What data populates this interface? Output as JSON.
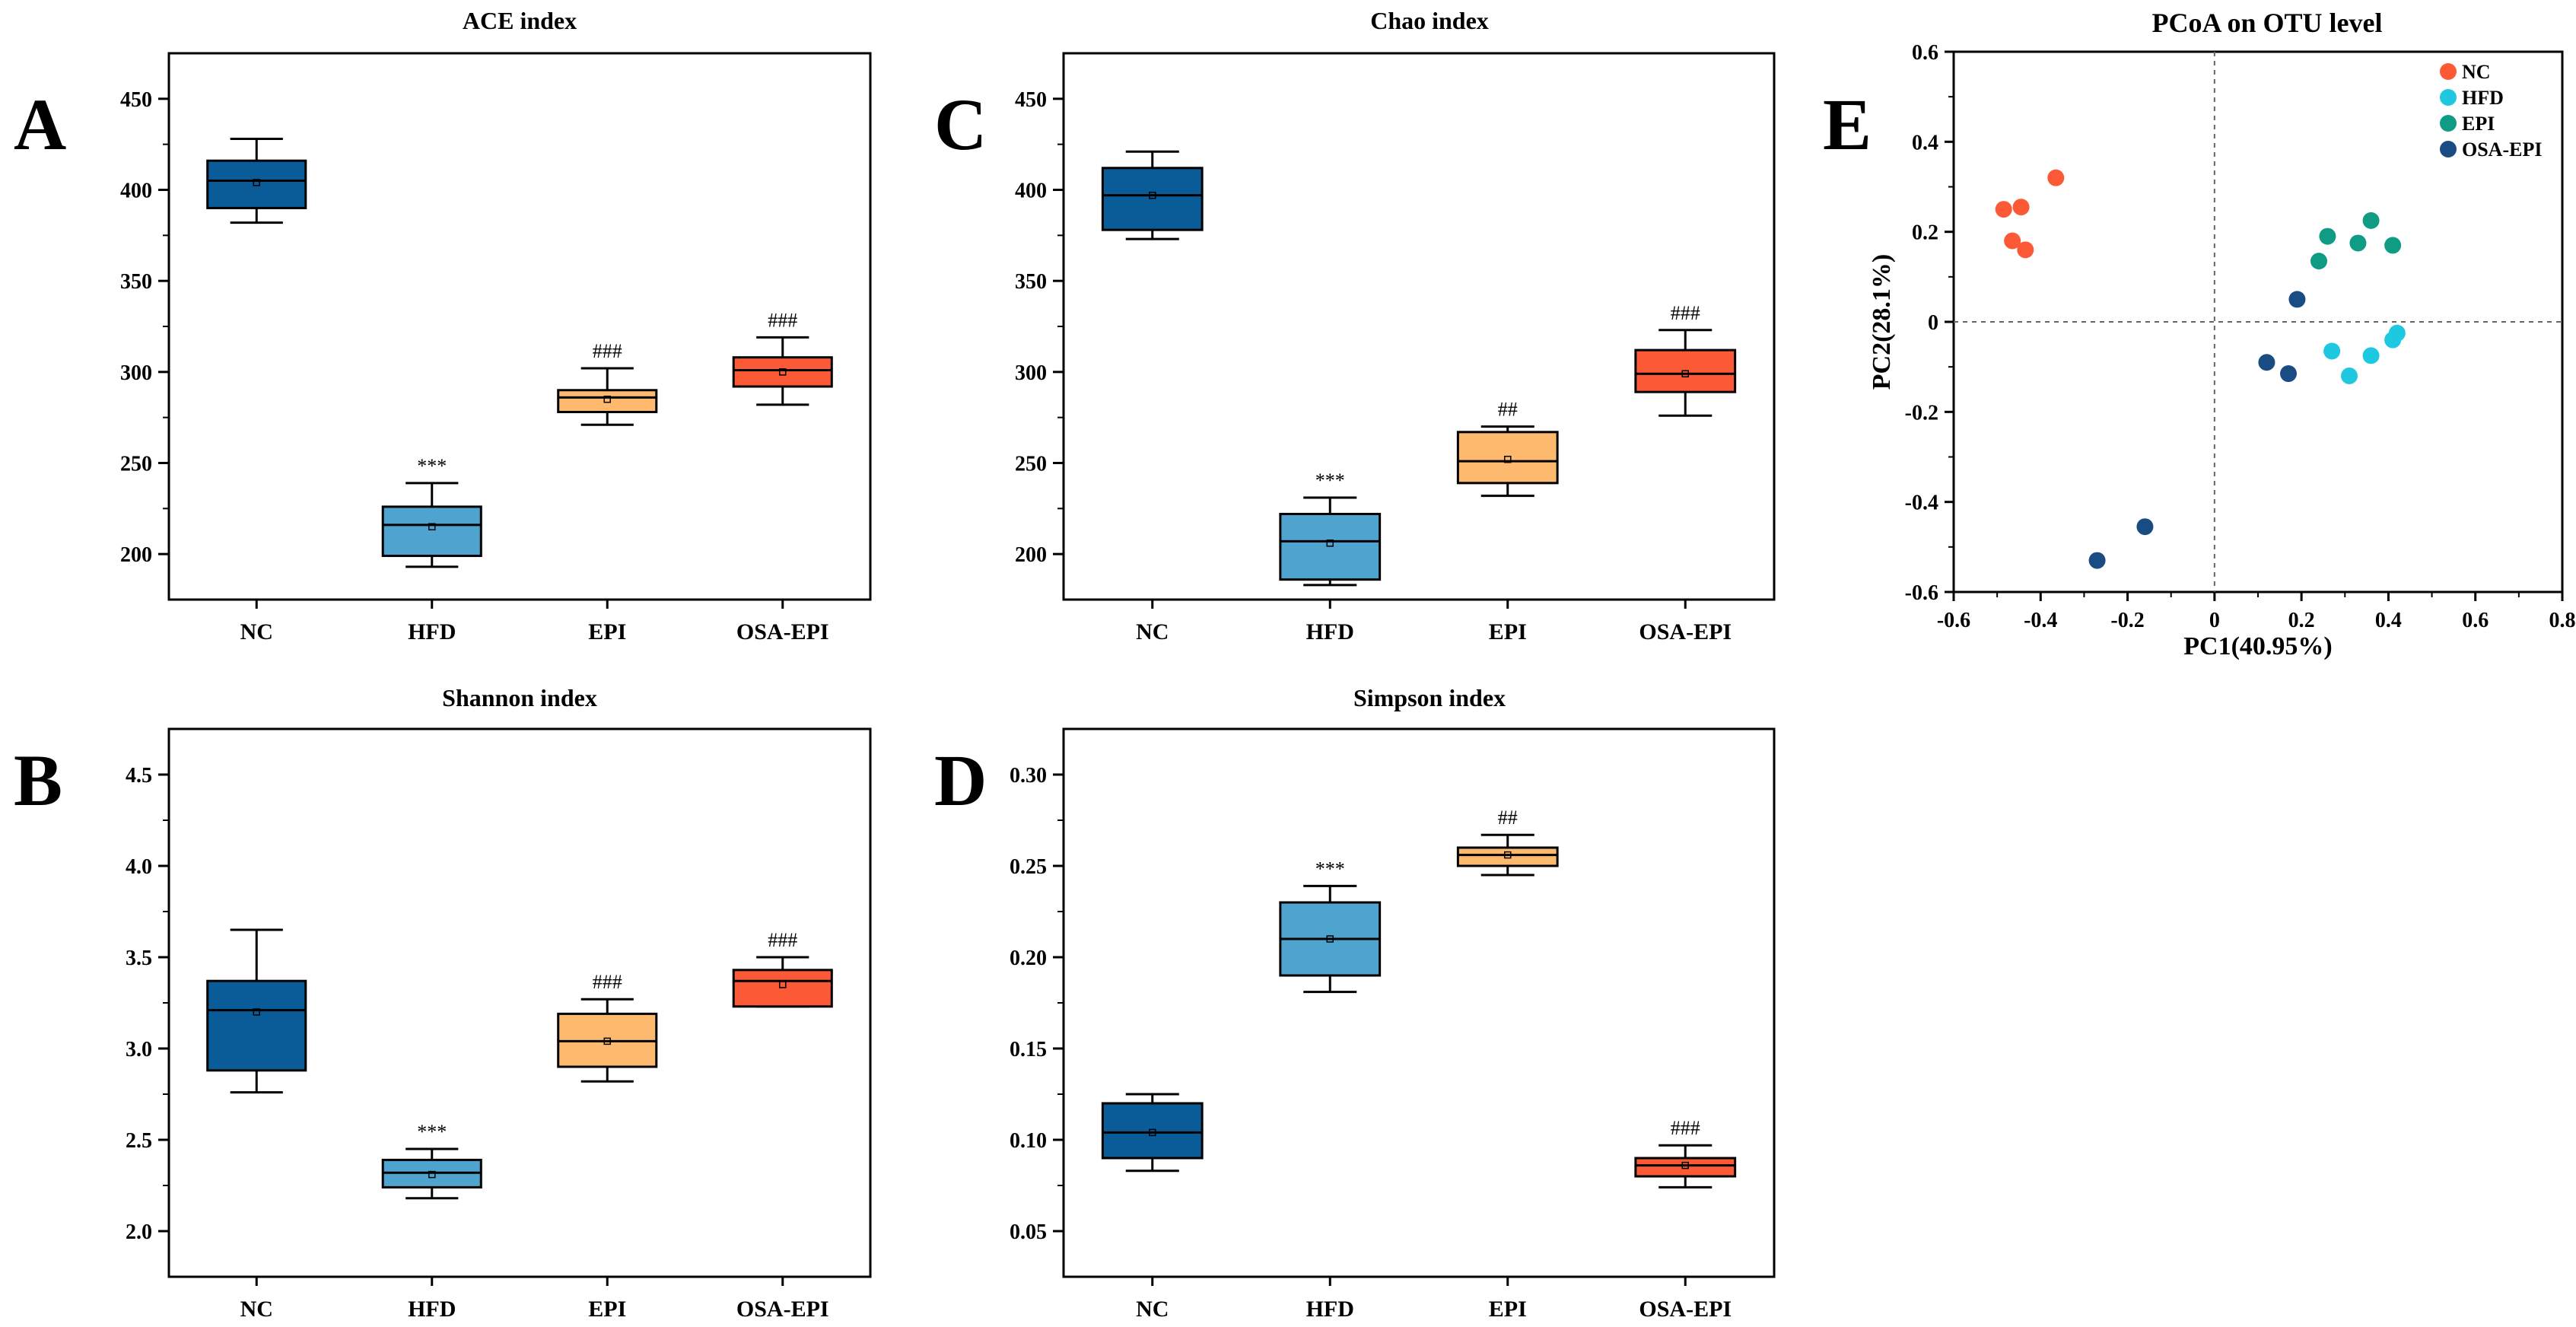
{
  "chart_data": [
    {
      "id": "A",
      "panel_letter": "A",
      "type": "box",
      "title": "ACE index",
      "categories": [
        "NC",
        "HFD",
        "EPI",
        "OSA-EPI"
      ],
      "colors": [
        "#0a5c99",
        "#4fa3cf",
        "#fdb96e",
        "#fc5a37"
      ],
      "ylim": [
        175,
        475
      ],
      "yticks": [
        200,
        250,
        300,
        350,
        400,
        450
      ],
      "boxes": [
        {
          "min": 382,
          "q1": 390,
          "median": 405,
          "q3": 416,
          "max": 428,
          "mean": 404,
          "sig": ""
        },
        {
          "min": 193,
          "q1": 199,
          "median": 216,
          "q3": 226,
          "max": 239,
          "mean": 215,
          "sig": "***"
        },
        {
          "min": 271,
          "q1": 278,
          "median": 286,
          "q3": 290,
          "max": 302,
          "mean": 285,
          "sig": "###"
        },
        {
          "min": 282,
          "q1": 292,
          "median": 301,
          "q3": 308,
          "max": 319,
          "mean": 300,
          "sig": "###"
        }
      ]
    },
    {
      "id": "B",
      "panel_letter": "B",
      "type": "box",
      "title": "Shannon index",
      "categories": [
        "NC",
        "HFD",
        "EPI",
        "OSA-EPI"
      ],
      "colors": [
        "#0a5c99",
        "#4fa3cf",
        "#fdb96e",
        "#fc5a37"
      ],
      "ylim": [
        1.75,
        4.75
      ],
      "yticks": [
        2.0,
        2.5,
        3.0,
        3.5,
        4.0,
        4.5
      ],
      "tick_decimals": 1,
      "boxes": [
        {
          "min": 2.76,
          "q1": 2.88,
          "median": 3.21,
          "q3": 3.37,
          "max": 3.65,
          "mean": 3.2,
          "sig": ""
        },
        {
          "min": 2.18,
          "q1": 2.24,
          "median": 2.32,
          "q3": 2.39,
          "max": 2.45,
          "mean": 2.31,
          "sig": "***"
        },
        {
          "min": 2.82,
          "q1": 2.9,
          "median": 3.04,
          "q3": 3.19,
          "max": 3.27,
          "mean": 3.04,
          "sig": "###"
        },
        {
          "min": 3.23,
          "q1": 3.23,
          "median": 3.37,
          "q3": 3.43,
          "max": 3.5,
          "mean": 3.35,
          "sig": "###"
        }
      ]
    },
    {
      "id": "C",
      "panel_letter": "C",
      "type": "box",
      "title": "Chao index",
      "categories": [
        "NC",
        "HFD",
        "EPI",
        "OSA-EPI"
      ],
      "colors": [
        "#0a5c99",
        "#4fa3cf",
        "#fdb96e",
        "#fc5a37"
      ],
      "ylim": [
        175,
        475
      ],
      "yticks": [
        200,
        250,
        300,
        350,
        400,
        450
      ],
      "boxes": [
        {
          "min": 373,
          "q1": 378,
          "median": 397,
          "q3": 412,
          "max": 421,
          "mean": 397,
          "sig": ""
        },
        {
          "min": 183,
          "q1": 186,
          "median": 207,
          "q3": 222,
          "max": 231,
          "mean": 206,
          "sig": "***"
        },
        {
          "min": 232,
          "q1": 239,
          "median": 251,
          "q3": 267,
          "max": 270,
          "mean": 252,
          "sig": "##"
        },
        {
          "min": 276,
          "q1": 289,
          "median": 299,
          "q3": 312,
          "max": 323,
          "mean": 299,
          "sig": "###"
        }
      ]
    },
    {
      "id": "D",
      "panel_letter": "D",
      "type": "box",
      "title": "Simpson index",
      "categories": [
        "NC",
        "HFD",
        "EPI",
        "OSA-EPI"
      ],
      "colors": [
        "#0a5c99",
        "#4fa3cf",
        "#fdb96e",
        "#fc5a37"
      ],
      "ylim": [
        0.025,
        0.325
      ],
      "yticks": [
        0.05,
        0.1,
        0.15,
        0.2,
        0.25,
        0.3
      ],
      "tick_decimals": 2,
      "boxes": [
        {
          "min": 0.083,
          "q1": 0.09,
          "median": 0.104,
          "q3": 0.12,
          "max": 0.125,
          "mean": 0.104,
          "sig": ""
        },
        {
          "min": 0.181,
          "q1": 0.19,
          "median": 0.21,
          "q3": 0.23,
          "max": 0.239,
          "mean": 0.21,
          "sig": "***"
        },
        {
          "min": 0.245,
          "q1": 0.25,
          "median": 0.256,
          "q3": 0.26,
          "max": 0.267,
          "mean": 0.256,
          "sig": "##"
        },
        {
          "min": 0.074,
          "q1": 0.08,
          "median": 0.086,
          "q3": 0.09,
          "max": 0.097,
          "mean": 0.086,
          "sig": "###"
        }
      ]
    },
    {
      "id": "E",
      "panel_letter": "E",
      "type": "scatter",
      "title": "PCoA on OTU level",
      "xlabel": "PC1(40.95%)",
      "ylabel": "PC2(28.1%)",
      "xlim": [
        -0.6,
        0.8
      ],
      "ylim": [
        -0.6,
        0.6
      ],
      "xticks": [
        -0.6,
        -0.4,
        -0.2,
        0,
        0.2,
        0.4,
        0.6,
        0.8
      ],
      "yticks": [
        -0.6,
        -0.4,
        -0.2,
        0,
        0.2,
        0.4,
        0.6
      ],
      "series": [
        {
          "name": "NC",
          "color": "#fc5a37",
          "points": [
            [
              -0.485,
              0.25
            ],
            [
              -0.445,
              0.255
            ],
            [
              -0.365,
              0.32
            ],
            [
              -0.465,
              0.18
            ],
            [
              -0.435,
              0.16
            ]
          ]
        },
        {
          "name": "HFD",
          "color": "#1ec8e0",
          "points": [
            [
              0.27,
              -0.065
            ],
            [
              0.31,
              -0.12
            ],
            [
              0.36,
              -0.075
            ],
            [
              0.41,
              -0.04
            ],
            [
              0.42,
              -0.025
            ]
          ]
        },
        {
          "name": "EPI",
          "color": "#109c84",
          "points": [
            [
              0.26,
              0.19
            ],
            [
              0.36,
              0.225
            ],
            [
              0.33,
              0.175
            ],
            [
              0.41,
              0.17
            ],
            [
              0.24,
              0.135
            ]
          ]
        },
        {
          "name": "OSA-EPI",
          "color": "#1a4c84",
          "points": [
            [
              0.19,
              0.05
            ],
            [
              0.12,
              -0.09
            ],
            [
              0.17,
              -0.115
            ],
            [
              -0.27,
              -0.53
            ],
            [
              -0.16,
              -0.455
            ]
          ]
        }
      ]
    }
  ]
}
